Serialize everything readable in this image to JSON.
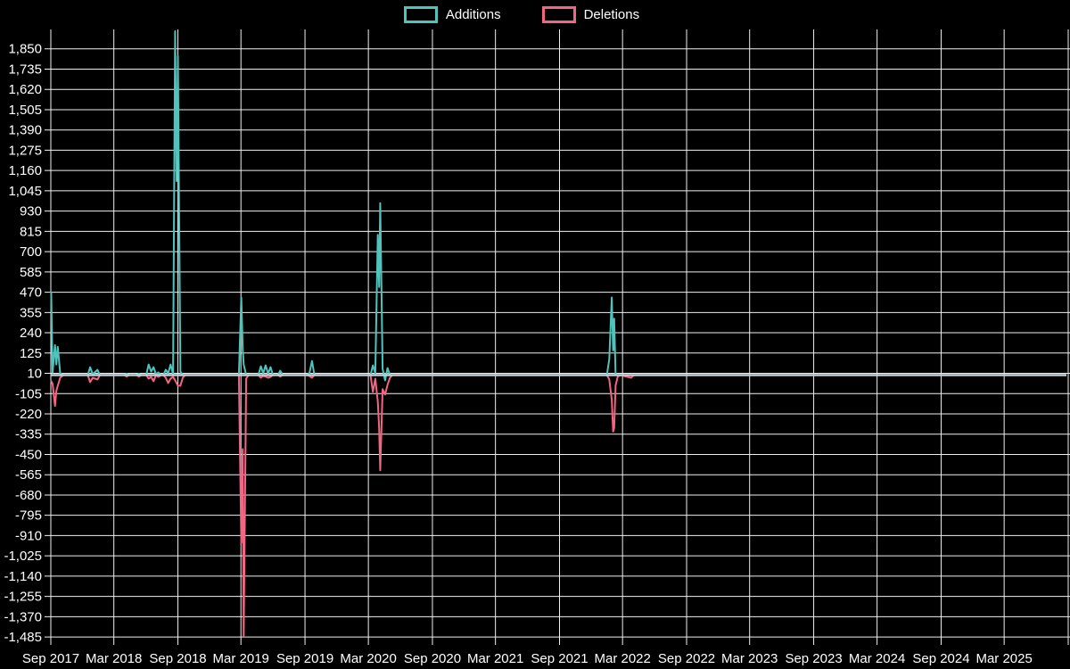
{
  "chart_data": {
    "type": "line",
    "title": "",
    "background_color": "#000000",
    "grid_color": "#f0f0f0",
    "zero_line_color": "#c0d2dc",
    "legend_position": "top-center",
    "legend": [
      {
        "label": "Additions",
        "color": "#4ec4bd"
      },
      {
        "label": "Deletions",
        "color": "#f26584"
      }
    ],
    "y_axis": {
      "tick_max": 1850,
      "tick_min": -1485,
      "tick_step": 115,
      "range": [
        -1530,
        1960
      ],
      "tick_label_format": "thousands-comma"
    },
    "x_axis": {
      "start_date": "2017-09-01",
      "end_date": "2025-09-01",
      "ticks": [
        {
          "date": "2017-09-01",
          "label": "Sep 2017"
        },
        {
          "date": "2018-03-01",
          "label": "Mar 2018"
        },
        {
          "date": "2018-09-01",
          "label": "Sep 2018"
        },
        {
          "date": "2019-03-01",
          "label": "Mar 2019"
        },
        {
          "date": "2019-09-01",
          "label": "Sep 2019"
        },
        {
          "date": "2020-03-01",
          "label": "Mar 2020"
        },
        {
          "date": "2020-09-01",
          "label": "Sep 2020"
        },
        {
          "date": "2021-03-01",
          "label": "Mar 2021"
        },
        {
          "date": "2021-09-01",
          "label": "Sep 2021"
        },
        {
          "date": "2022-03-01",
          "label": "Mar 2022"
        },
        {
          "date": "2022-09-01",
          "label": "Sep 2022"
        },
        {
          "date": "2023-03-01",
          "label": "Mar 2023"
        },
        {
          "date": "2023-09-01",
          "label": "Sep 2023"
        },
        {
          "date": "2024-03-01",
          "label": "Mar 2024"
        },
        {
          "date": "2024-09-01",
          "label": "Sep 2024"
        },
        {
          "date": "2025-03-01",
          "label": "Mar 2025"
        },
        {
          "date": "2025-09-01",
          "label": ""
        }
      ]
    },
    "series": [
      {
        "name": "Additions",
        "color": "#4ec4bd",
        "points": [
          [
            "2017-09-02",
            470
          ],
          [
            "2017-09-06",
            15
          ],
          [
            "2017-09-13",
            170
          ],
          [
            "2017-09-17",
            60
          ],
          [
            "2017-09-21",
            160
          ],
          [
            "2017-09-28",
            10
          ],
          [
            "2017-10-07",
            0
          ],
          [
            "2017-12-16",
            0
          ],
          [
            "2017-12-23",
            45
          ],
          [
            "2017-12-30",
            5
          ],
          [
            "2018-01-13",
            30
          ],
          [
            "2018-01-20",
            0
          ],
          [
            "2018-03-31",
            0
          ],
          [
            "2018-04-07",
            8
          ],
          [
            "2018-04-14",
            0
          ],
          [
            "2018-05-05",
            0
          ],
          [
            "2018-05-12",
            8
          ],
          [
            "2018-05-19",
            0
          ],
          [
            "2018-06-02",
            0
          ],
          [
            "2018-06-09",
            60
          ],
          [
            "2018-06-16",
            20
          ],
          [
            "2018-06-23",
            45
          ],
          [
            "2018-06-30",
            5
          ],
          [
            "2018-07-07",
            15
          ],
          [
            "2018-07-14",
            0
          ],
          [
            "2018-07-21",
            0
          ],
          [
            "2018-07-28",
            30
          ],
          [
            "2018-08-04",
            10
          ],
          [
            "2018-08-11",
            60
          ],
          [
            "2018-08-18",
            5
          ],
          [
            "2018-08-24",
            1950
          ],
          [
            "2018-08-28",
            1100
          ],
          [
            "2018-09-01",
            1810
          ],
          [
            "2018-09-08",
            20
          ],
          [
            "2018-09-15",
            0
          ],
          [
            "2019-02-23",
            0
          ],
          [
            "2019-03-02",
            440
          ],
          [
            "2019-03-06",
            150
          ],
          [
            "2019-03-09",
            60
          ],
          [
            "2019-03-16",
            0
          ],
          [
            "2019-04-20",
            0
          ],
          [
            "2019-04-27",
            50
          ],
          [
            "2019-05-04",
            10
          ],
          [
            "2019-05-11",
            55
          ],
          [
            "2019-05-18",
            8
          ],
          [
            "2019-05-25",
            45
          ],
          [
            "2019-06-01",
            0
          ],
          [
            "2019-06-15",
            0
          ],
          [
            "2019-06-22",
            25
          ],
          [
            "2019-06-29",
            0
          ],
          [
            "2019-09-07",
            0
          ],
          [
            "2019-09-14",
            12
          ],
          [
            "2019-09-21",
            80
          ],
          [
            "2019-09-28",
            0
          ],
          [
            "2020-03-07",
            0
          ],
          [
            "2020-03-14",
            55
          ],
          [
            "2020-03-21",
            10
          ],
          [
            "2020-03-28",
            795
          ],
          [
            "2020-04-01",
            500
          ],
          [
            "2020-04-04",
            975
          ],
          [
            "2020-04-11",
            35
          ],
          [
            "2020-04-18",
            -30
          ],
          [
            "2020-04-25",
            40
          ],
          [
            "2020-05-02",
            0
          ],
          [
            "2022-01-15",
            0
          ],
          [
            "2022-01-22",
            90
          ],
          [
            "2022-01-29",
            440
          ],
          [
            "2022-02-02",
            140
          ],
          [
            "2022-02-05",
            320
          ],
          [
            "2022-02-09",
            0
          ],
          [
            "2022-02-22",
            0
          ],
          [
            "2025-08-20",
            0
          ]
        ]
      },
      {
        "name": "Deletions",
        "color": "#f26584",
        "points": [
          [
            "2017-09-02",
            -35
          ],
          [
            "2017-09-06",
            -50
          ],
          [
            "2017-09-13",
            -175
          ],
          [
            "2017-09-17",
            -90
          ],
          [
            "2017-09-21",
            -60
          ],
          [
            "2017-09-28",
            -15
          ],
          [
            "2017-10-07",
            0
          ],
          [
            "2017-12-16",
            0
          ],
          [
            "2017-12-23",
            -40
          ],
          [
            "2017-12-30",
            -15
          ],
          [
            "2018-01-13",
            -25
          ],
          [
            "2018-01-20",
            0
          ],
          [
            "2018-03-31",
            0
          ],
          [
            "2018-04-07",
            -8
          ],
          [
            "2018-04-14",
            0
          ],
          [
            "2018-05-05",
            0
          ],
          [
            "2018-05-12",
            -8
          ],
          [
            "2018-05-19",
            0
          ],
          [
            "2018-06-02",
            0
          ],
          [
            "2018-06-09",
            -20
          ],
          [
            "2018-06-16",
            -10
          ],
          [
            "2018-06-23",
            -35
          ],
          [
            "2018-06-30",
            0
          ],
          [
            "2018-07-07",
            -10
          ],
          [
            "2018-07-14",
            0
          ],
          [
            "2018-07-21",
            0
          ],
          [
            "2018-07-28",
            -15
          ],
          [
            "2018-08-04",
            -45
          ],
          [
            "2018-08-11",
            -20
          ],
          [
            "2018-08-18",
            -10
          ],
          [
            "2018-08-24",
            -30
          ],
          [
            "2018-08-28",
            -45
          ],
          [
            "2018-09-01",
            -60
          ],
          [
            "2018-09-08",
            -60
          ],
          [
            "2018-09-15",
            -15
          ],
          [
            "2018-09-22",
            0
          ],
          [
            "2019-02-23",
            0
          ],
          [
            "2019-03-02",
            -950
          ],
          [
            "2019-03-06",
            -420
          ],
          [
            "2019-03-09",
            -1480
          ],
          [
            "2019-03-16",
            -20
          ],
          [
            "2019-03-23",
            0
          ],
          [
            "2019-04-20",
            0
          ],
          [
            "2019-04-27",
            -15
          ],
          [
            "2019-05-04",
            -5
          ],
          [
            "2019-05-11",
            -8
          ],
          [
            "2019-05-18",
            -15
          ],
          [
            "2019-05-25",
            -10
          ],
          [
            "2019-06-01",
            0
          ],
          [
            "2019-06-15",
            0
          ],
          [
            "2019-06-22",
            -8
          ],
          [
            "2019-06-29",
            0
          ],
          [
            "2019-09-07",
            0
          ],
          [
            "2019-09-14",
            -5
          ],
          [
            "2019-09-21",
            -15
          ],
          [
            "2019-09-28",
            0
          ],
          [
            "2020-03-07",
            0
          ],
          [
            "2020-03-14",
            -95
          ],
          [
            "2020-03-21",
            -20
          ],
          [
            "2020-03-28",
            -150
          ],
          [
            "2020-04-01",
            -300
          ],
          [
            "2020-04-04",
            -540
          ],
          [
            "2020-04-11",
            -80
          ],
          [
            "2020-04-18",
            -110
          ],
          [
            "2020-04-25",
            -55
          ],
          [
            "2020-05-02",
            -15
          ],
          [
            "2020-05-09",
            0
          ],
          [
            "2022-01-15",
            0
          ],
          [
            "2022-01-22",
            -25
          ],
          [
            "2022-01-29",
            -140
          ],
          [
            "2022-02-02",
            -320
          ],
          [
            "2022-02-05",
            -300
          ],
          [
            "2022-02-09",
            -60
          ],
          [
            "2022-02-15",
            -10
          ],
          [
            "2022-02-22",
            0
          ],
          [
            "2022-03-26",
            -15
          ],
          [
            "2022-04-02",
            0
          ],
          [
            "2025-08-20",
            0
          ]
        ]
      }
    ]
  }
}
